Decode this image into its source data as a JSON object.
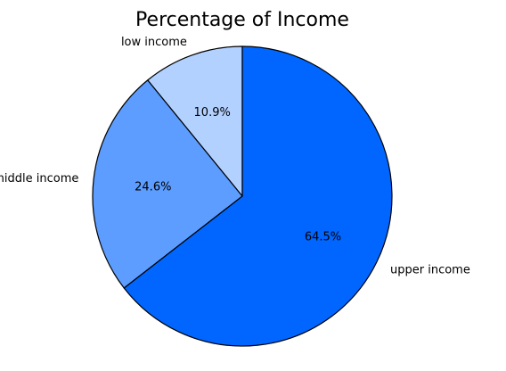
{
  "chart_data": {
    "type": "pie",
    "title": "Percentage of Income",
    "slices": [
      {
        "label": "low income",
        "value": 10.9,
        "pct_text": "10.9%",
        "color": "#b3d1ff"
      },
      {
        "label": "middle income",
        "value": 24.6,
        "pct_text": "24.6%",
        "color": "#5c9dff"
      },
      {
        "label": "upper income",
        "value": 64.5,
        "pct_text": "64.5%",
        "color": "#0066ff"
      }
    ],
    "edge_color": "#000000",
    "legend": "none"
  }
}
